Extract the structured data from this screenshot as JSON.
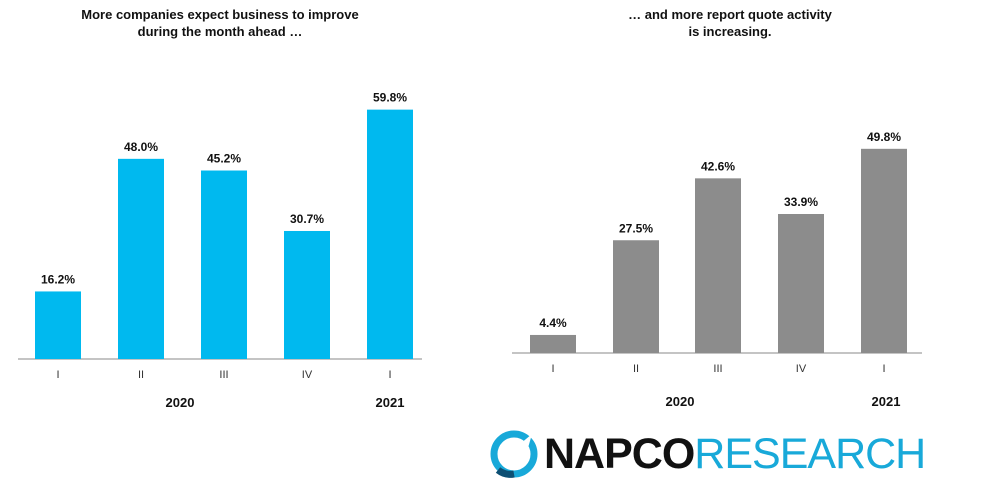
{
  "charts": {
    "left_title": "More companies expect business to improve\nduring the month ahead …",
    "right_title": "… and more report quote activity\nis increasing."
  },
  "colors": {
    "left_bar": "#00b9ef",
    "right_bar": "#8c8c8c",
    "axis": "#8a8a8a",
    "logo_accent": "#18a9d9"
  },
  "logo": {
    "napco": "NAPCO",
    "research": "RESEARCH",
    "icon": "napco-circle-logo-icon"
  },
  "chart_data": [
    {
      "type": "bar",
      "title": "More companies expect business to improve during the month ahead …",
      "categories": [
        "I",
        "II",
        "III",
        "IV",
        "I"
      ],
      "group_labels": [
        "2020",
        "2021"
      ],
      "values": [
        16.2,
        48.0,
        45.2,
        30.7,
        59.8
      ],
      "data_labels": [
        "16.2%",
        "48.0%",
        "45.2%",
        "30.7%",
        "59.8%"
      ],
      "ylim": [
        0,
        60
      ],
      "grid": false,
      "color": "#00b9ef"
    },
    {
      "type": "bar",
      "title": "… and more report quote activity is increasing.",
      "categories": [
        "I",
        "II",
        "III",
        "IV",
        "I"
      ],
      "group_labels": [
        "2020",
        "2021"
      ],
      "values": [
        4.4,
        27.5,
        42.6,
        33.9,
        49.8
      ],
      "data_labels": [
        "4.4%",
        "27.5%",
        "42.6%",
        "33.9%",
        "49.8%"
      ],
      "ylim": [
        0,
        50
      ],
      "grid": false,
      "color": "#8c8c8c"
    }
  ]
}
